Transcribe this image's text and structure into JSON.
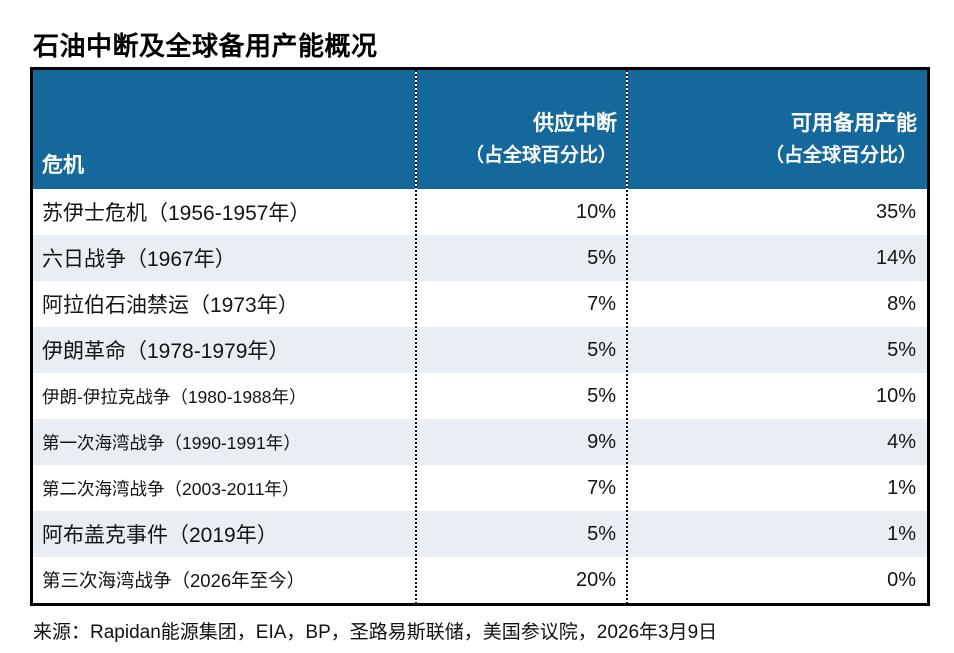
{
  "title": "石油中断及全球备用产能概况",
  "header": {
    "crisis": "危机",
    "disruption_line1": "供应中断",
    "disruption_line2": "（占全球百分比）",
    "spare_line1": "可用备用产能",
    "spare_line2": "（占全球百分比）"
  },
  "rows": [
    {
      "crisis": "苏伊士危机（1956-1957年）",
      "disruption": "10%",
      "spare": "35%"
    },
    {
      "crisis": "六日战争（1967年）",
      "disruption": "5%",
      "spare": "14%"
    },
    {
      "crisis": "阿拉伯石油禁运（1973年）",
      "disruption": "7%",
      "spare": "8%"
    },
    {
      "crisis": "伊朗革命（1978-1979年）",
      "disruption": "5%",
      "spare": "5%"
    },
    {
      "crisis": "伊朗-伊拉克战争（1980-1988年）",
      "disruption": "5%",
      "spare": "10%"
    },
    {
      "crisis": "第一次海湾战争（1990-1991年）",
      "disruption": "9%",
      "spare": "4%"
    },
    {
      "crisis": "第二次海湾战争（2003-2011年）",
      "disruption": "7%",
      "spare": "1%"
    },
    {
      "crisis": "阿布盖克事件（2019年）",
      "disruption": "5%",
      "spare": "1%"
    },
    {
      "crisis": "第三次海湾战争（2026年至今）",
      "disruption": "20%",
      "spare": "0%"
    }
  ],
  "source": "来源：Rapidan能源集团，EIA，BP，圣路易斯联储，美国参议院，2026年3月9日",
  "colors": {
    "header_bg": "#15689B",
    "header_text": "#FFFFFF",
    "row_alt_bg": "#E8EEF3",
    "body_text": "#141414",
    "border": "#000000"
  },
  "chart_data": {
    "type": "table",
    "title": "石油中断及全球备用产能概况",
    "columns": [
      "危机",
      "供应中断（占全球百分比）",
      "可用备用产能（占全球百分比）"
    ],
    "units": "%",
    "rows": [
      [
        "苏伊士危机（1956-1957年）",
        10,
        35
      ],
      [
        "六日战争（1967年）",
        5,
        14
      ],
      [
        "阿拉伯石油禁运（1973年）",
        7,
        8
      ],
      [
        "伊朗革命（1978-1979年）",
        5,
        5
      ],
      [
        "伊朗-伊拉克战争（1980-1988年）",
        5,
        10
      ],
      [
        "第一次海湾战争（1990-1991年）",
        9,
        4
      ],
      [
        "第二次海湾战争（2003-2011年）",
        7,
        1
      ],
      [
        "阿布盖克事件（2019年）",
        5,
        1
      ],
      [
        "第三次海湾战争（2026年至今）",
        20,
        0
      ]
    ],
    "source": "来源：Rapidan能源集团，EIA，BP，圣路易斯联储，美国参议院，2026年3月9日"
  }
}
